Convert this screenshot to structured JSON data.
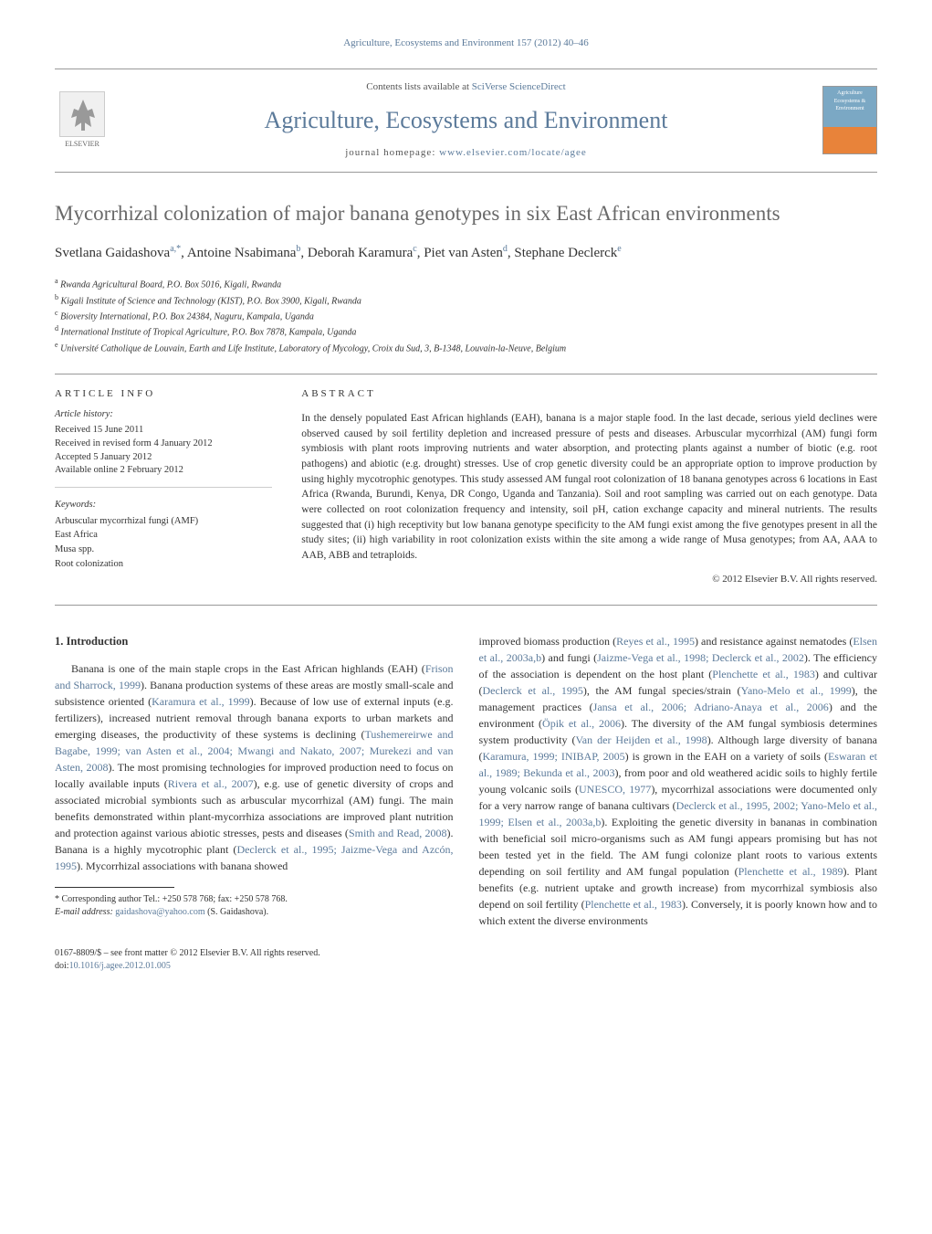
{
  "header": {
    "citation": "Agriculture, Ecosystems and Environment 157 (2012) 40–46",
    "contents_prefix": "Contents lists available at ",
    "contents_link": "SciVerse ScienceDirect",
    "journal_name": "Agriculture, Ecosystems and Environment",
    "homepage_prefix": "journal homepage: ",
    "homepage_url": "www.elsevier.com/locate/agee",
    "publisher_name": "ELSEVIER",
    "cover_text": "Agriculture Ecosystems & Environment"
  },
  "article": {
    "title": "Mycorrhizal colonization of major banana genotypes in six East African environments",
    "authors_html": "Svetlana Gaidashova<span class='sup'>a,*</span>, Antoine Nsabimana<span class='sup'>b</span>, Deborah Karamura<span class='sup'>c</span>, Piet van Asten<span class='sup'>d</span>, Stephane Declerck<span class='sup'>e</span>",
    "affiliations": [
      {
        "sup": "a",
        "text": "Rwanda Agricultural Board, P.O. Box 5016, Kigali, Rwanda"
      },
      {
        "sup": "b",
        "text": "Kigali Institute of Science and Technology (KIST), P.O. Box 3900, Kigali, Rwanda"
      },
      {
        "sup": "c",
        "text": "Bioversity International, P.O. Box 24384, Naguru, Kampala, Uganda"
      },
      {
        "sup": "d",
        "text": "International Institute of Tropical Agriculture, P.O. Box 7878, Kampala, Uganda"
      },
      {
        "sup": "e",
        "text": "Université Catholique de Louvain, Earth and Life Institute, Laboratory of Mycology, Croix du Sud, 3, B-1348, Louvain-la-Neuve, Belgium"
      }
    ]
  },
  "info": {
    "heading": "ARTICLE INFO",
    "history_heading": "Article history:",
    "history": [
      "Received 15 June 2011",
      "Received in revised form 4 January 2012",
      "Accepted 5 January 2012",
      "Available online 2 February 2012"
    ],
    "keywords_heading": "Keywords:",
    "keywords": [
      "Arbuscular mycorrhizal fungi (AMF)",
      "East Africa",
      "Musa spp.",
      "Root colonization"
    ]
  },
  "abstract": {
    "heading": "ABSTRACT",
    "text": "In the densely populated East African highlands (EAH), banana is a major staple food. In the last decade, serious yield declines were observed caused by soil fertility depletion and increased pressure of pests and diseases. Arbuscular mycorrhizal (AM) fungi form symbiosis with plant roots improving nutrients and water absorption, and protecting plants against a number of biotic (e.g. root pathogens) and abiotic (e.g. drought) stresses. Use of crop genetic diversity could be an appropriate option to improve production by using highly mycotrophic genotypes. This study assessed AM fungal root colonization of 18 banana genotypes across 6 locations in East Africa (Rwanda, Burundi, Kenya, DR Congo, Uganda and Tanzania). Soil and root sampling was carried out on each genotype. Data were collected on root colonization frequency and intensity, soil pH, cation exchange capacity and mineral nutrients. The results suggested that (i) high receptivity but low banana genotype specificity to the AM fungi exist among the five genotypes present in all the study sites; (ii) high variability in root colonization exists within the site among a wide range of Musa genotypes; from AA, AAA to AAB, ABB and tetraploids.",
    "copyright": "© 2012 Elsevier B.V. All rights reserved."
  },
  "section1": {
    "heading": "1. Introduction",
    "p1_pre": "Banana is one of the main staple crops in the East African highlands (EAH) (",
    "p1_ref1": "Frison and Sharrock, 1999",
    "p1_mid1": "). Banana production systems of these areas are mostly small-scale and subsistence oriented (",
    "p1_ref2": "Karamura et al., 1999",
    "p1_mid2": "). Because of low use of external inputs (e.g. fertilizers), increased nutrient removal through banana exports to urban markets and emerging diseases, the productivity of these systems is declining (",
    "p1_ref3": "Tushemereirwe and Bagabe, 1999; van Asten et al., 2004; Mwangi and Nakato, 2007; Murekezi and van Asten, 2008",
    "p1_mid3": "). The most promising technologies for improved production need to focus on locally available inputs (",
    "p1_ref4": "Rivera et al., 2007",
    "p1_mid4": "), e.g. use of genetic diversity of crops and associated microbial symbionts such as arbuscular mycorrhizal (AM) fungi. The main benefits demonstrated within plant-mycorrhiza associations are improved plant nutrition and protection against various abiotic stresses, pests and diseases (",
    "p1_ref5": "Smith and Read, 2008",
    "p1_mid5": "). Banana is a highly mycotrophic plant (",
    "p1_ref6": "Declerck et al., 1995; Jaizme-Vega and Azcón, 1995",
    "p1_mid6": "). Mycorrhizal associations with banana showed ",
    "p2_pre": "improved biomass production (",
    "p2_ref1": "Reyes et al., 1995",
    "p2_mid1": ") and resistance against nematodes (",
    "p2_ref2": "Elsen et al., 2003a,b",
    "p2_mid2": ") and fungi (",
    "p2_ref3": "Jaizme-Vega et al., 1998; Declerck et al., 2002",
    "p2_mid3": "). The efficiency of the association is dependent on the host plant (",
    "p2_ref4": "Plenchette et al., 1983",
    "p2_mid4": ") and cultivar (",
    "p2_ref5": "Declerck et al., 1995",
    "p2_mid5": "), the AM fungal species/strain (",
    "p2_ref6": "Yano-Melo et al., 1999",
    "p2_mid6": "), the management practices (",
    "p2_ref7": "Jansa et al., 2006; Adriano-Anaya et al., 2006",
    "p2_mid7": ") and the environment (",
    "p2_ref8": "Öpik et al., 2006",
    "p2_mid8": "). The diversity of the AM fungal symbiosis determines system productivity (",
    "p2_ref9": "Van der Heijden et al., 1998",
    "p2_mid9": "). Although large diversity of banana (",
    "p2_ref10": "Karamura, 1999; INIBAP, 2005",
    "p2_mid10": ") is grown in the EAH on a variety of soils (",
    "p2_ref11": "Eswaran et al., 1989; Bekunda et al., 2003",
    "p2_mid11": "), from poor and old weathered acidic soils to highly fertile young volcanic soils (",
    "p2_ref12": "UNESCO, 1977",
    "p2_mid12": "), mycorrhizal associations were documented only for a very narrow range of banana cultivars (",
    "p2_ref13": "Declerck et al., 1995, 2002; Yano-Melo et al., 1999; Elsen et al., 2003a,b",
    "p2_mid13": "). Exploiting the genetic diversity in bananas in combination with beneficial soil micro-organisms such as AM fungi appears promising but has not been tested yet in the field. The AM fungi colonize plant roots to various extents depending on soil fertility and AM fungal population (",
    "p2_ref14": "Plenchette et al., 1989",
    "p2_mid14": "). Plant benefits (e.g. nutrient uptake and growth increase) from mycorrhizal symbiosis also depend on soil fertility (",
    "p2_ref15": "Plenchette et al., 1983",
    "p2_mid15": "). Conversely, it is poorly known how and to which extent the diverse environments"
  },
  "footnote": {
    "corr": "* Corresponding author Tel.: +250 578 768; fax: +250 578 768.",
    "email_label": "E-mail address: ",
    "email": "gaidashova@yahoo.com",
    "email_suffix": " (S. Gaidashova)."
  },
  "footer": {
    "issn": "0167-8809/$ – see front matter © 2012 Elsevier B.V. All rights reserved.",
    "doi_label": "doi:",
    "doi": "10.1016/j.agee.2012.01.005"
  },
  "colors": {
    "link": "#5b7a9a",
    "title_gray": "#696969",
    "text": "#333333",
    "border": "#999999"
  }
}
